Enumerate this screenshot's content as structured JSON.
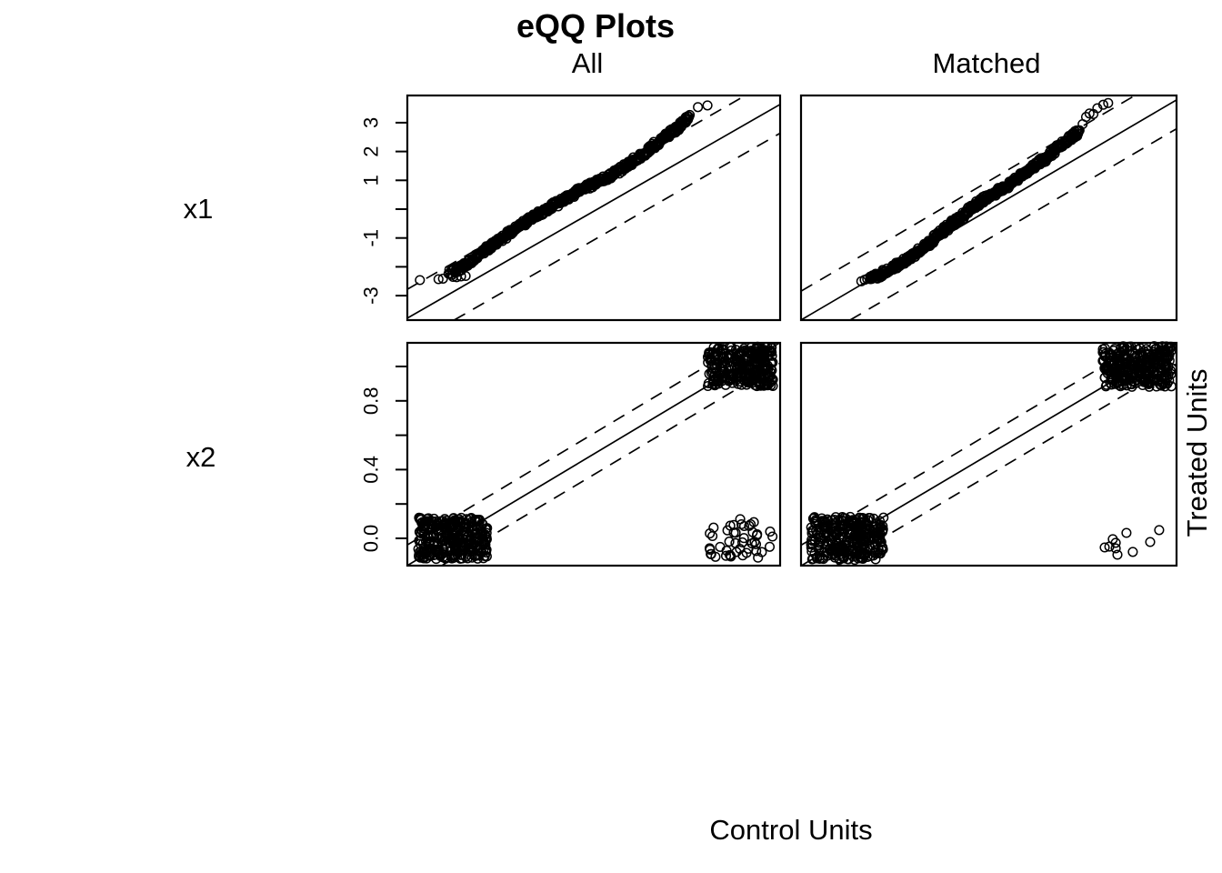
{
  "title": "eQQ Plots",
  "column_headers": [
    "All",
    "Matched"
  ],
  "row_labels": [
    "x1",
    "x2"
  ],
  "x_axis_label": "Control Units",
  "y_axis_label": "Treated Units",
  "colors": {
    "foreground": "#000000",
    "background": "#ffffff"
  },
  "chart_data": [
    {
      "id": "x1-all",
      "type": "scatter",
      "variable": "x1",
      "sample": "All",
      "marker": "open-circle",
      "grid": false,
      "y_axis": true,
      "x_range": [
        -3.78,
        3.63
      ],
      "y_range": [
        -3.85,
        3.94
      ],
      "y_ticks": [
        {
          "value": 3,
          "label": "3"
        },
        {
          "value": 2,
          "label": "2"
        },
        {
          "value": 1,
          "label": "1"
        },
        {
          "value": 0,
          "label": ""
        },
        {
          "value": -1,
          "label": "-1"
        },
        {
          "value": -2,
          "label": ""
        },
        {
          "value": -3,
          "label": "-3"
        }
      ],
      "identity_line": true,
      "dashed_offsets": [
        1.0,
        -1.0
      ],
      "n_points": 520,
      "qq_curve": [
        [
          -2.93,
          -2.2
        ],
        [
          -2.72,
          -2.02
        ],
        [
          -2.52,
          -1.8
        ],
        [
          -2.32,
          -1.55
        ],
        [
          -2.12,
          -1.28
        ],
        [
          -1.92,
          -1.02
        ],
        [
          -1.72,
          -0.78
        ],
        [
          -1.52,
          -0.55
        ],
        [
          -1.32,
          -0.33
        ],
        [
          -1.12,
          -0.12
        ],
        [
          -0.92,
          0.08
        ],
        [
          -0.72,
          0.28
        ],
        [
          -0.52,
          0.48
        ],
        [
          -0.32,
          0.66
        ],
        [
          -0.12,
          0.85
        ],
        [
          0.08,
          1.0
        ],
        [
          0.28,
          1.17
        ],
        [
          0.48,
          1.38
        ],
        [
          0.68,
          1.62
        ],
        [
          0.88,
          1.88
        ],
        [
          1.08,
          2.15
        ],
        [
          1.28,
          2.42
        ],
        [
          1.48,
          2.68
        ],
        [
          1.68,
          2.95
        ],
        [
          1.82,
          3.18
        ]
      ],
      "outliers": [
        [
          -3.53,
          -2.46
        ],
        [
          -3.16,
          -2.43
        ],
        [
          -3.07,
          -2.41
        ],
        [
          -2.87,
          -2.35
        ],
        [
          -2.8,
          -2.36
        ],
        [
          -2.71,
          -2.33
        ],
        [
          -2.62,
          -2.32
        ],
        [
          1.75,
          3.12
        ],
        [
          1.81,
          3.22
        ],
        [
          2.0,
          3.54
        ],
        [
          2.19,
          3.6
        ]
      ]
    },
    {
      "id": "x1-matched",
      "type": "scatter",
      "variable": "x1",
      "sample": "Matched",
      "marker": "open-circle",
      "grid": false,
      "y_axis": false,
      "x_range": [
        -3.84,
        3.79
      ],
      "y_range": [
        -3.85,
        3.94
      ],
      "y_ticks": [],
      "identity_line": true,
      "dashed_offsets": [
        1.0,
        -1.0
      ],
      "n_points": 480,
      "qq_curve": [
        [
          -2.45,
          -2.38
        ],
        [
          -2.25,
          -2.28
        ],
        [
          -2.05,
          -2.1
        ],
        [
          -1.85,
          -1.9
        ],
        [
          -1.65,
          -1.7
        ],
        [
          -1.45,
          -1.45
        ],
        [
          -1.25,
          -1.2
        ],
        [
          -1.05,
          -0.9
        ],
        [
          -0.85,
          -0.6
        ],
        [
          -0.65,
          -0.35
        ],
        [
          -0.45,
          -0.05
        ],
        [
          -0.25,
          0.2
        ],
        [
          -0.05,
          0.42
        ],
        [
          0.15,
          0.62
        ],
        [
          0.35,
          0.82
        ],
        [
          0.55,
          1.05
        ],
        [
          0.75,
          1.3
        ],
        [
          0.95,
          1.55
        ],
        [
          1.15,
          1.8
        ],
        [
          1.35,
          2.1
        ],
        [
          1.55,
          2.35
        ],
        [
          1.7,
          2.55
        ],
        [
          1.8,
          2.7
        ]
      ],
      "outliers": [
        [
          -2.62,
          -2.5
        ],
        [
          -2.55,
          -2.45
        ],
        [
          -2.5,
          -2.42
        ],
        [
          1.88,
          2.95
        ],
        [
          1.95,
          3.2
        ],
        [
          2.02,
          3.32
        ],
        [
          2.1,
          3.3
        ],
        [
          2.18,
          3.5
        ],
        [
          2.3,
          3.62
        ],
        [
          2.4,
          3.68
        ]
      ]
    },
    {
      "id": "x2-all",
      "type": "scatter",
      "variable": "x2",
      "sample": "All",
      "marker": "open-circle",
      "grid": false,
      "y_axis": true,
      "x_range": [
        -0.158,
        1.139
      ],
      "y_range": [
        -0.159,
        1.138
      ],
      "y_ticks": [
        {
          "value": 1.0,
          "label": ""
        },
        {
          "value": 0.8,
          "label": "0.8"
        },
        {
          "value": 0.6,
          "label": ""
        },
        {
          "value": 0.4,
          "label": "0.4"
        },
        {
          "value": 0.2,
          "label": ""
        },
        {
          "value": 0.0,
          "label": "0.0"
        }
      ],
      "identity_line": true,
      "dashed_offsets": [
        0.12,
        -0.12
      ],
      "clusters": [
        {
          "cx": 0,
          "cy": 0,
          "n": 310,
          "jitter": 0.12
        },
        {
          "cx": 1,
          "cy": 1,
          "n": 290,
          "jitter": 0.115
        },
        {
          "cx": 1,
          "cy": 0,
          "n": 46,
          "jitter": 0.115
        }
      ]
    },
    {
      "id": "x2-matched",
      "type": "scatter",
      "variable": "x2",
      "sample": "Matched",
      "marker": "open-circle",
      "grid": false,
      "y_axis": false,
      "x_range": [
        -0.16,
        1.135
      ],
      "y_range": [
        -0.159,
        1.138
      ],
      "y_ticks": [],
      "identity_line": true,
      "dashed_offsets": [
        0.12,
        -0.12
      ],
      "clusters": [
        {
          "cx": 0,
          "cy": 0,
          "n": 310,
          "jitter": 0.125
        },
        {
          "cx": 1,
          "cy": 1,
          "n": 300,
          "jitter": 0.12
        }
      ],
      "extra_points": [
        [
          0.887,
          -0.053
        ],
        [
          0.903,
          -0.048
        ],
        [
          0.915,
          -0.005
        ],
        [
          0.925,
          -0.026
        ],
        [
          0.925,
          -0.058
        ],
        [
          0.931,
          -0.095
        ],
        [
          0.962,
          0.032
        ],
        [
          0.984,
          -0.079
        ],
        [
          1.044,
          -0.021
        ],
        [
          1.075,
          0.048
        ]
      ]
    }
  ]
}
